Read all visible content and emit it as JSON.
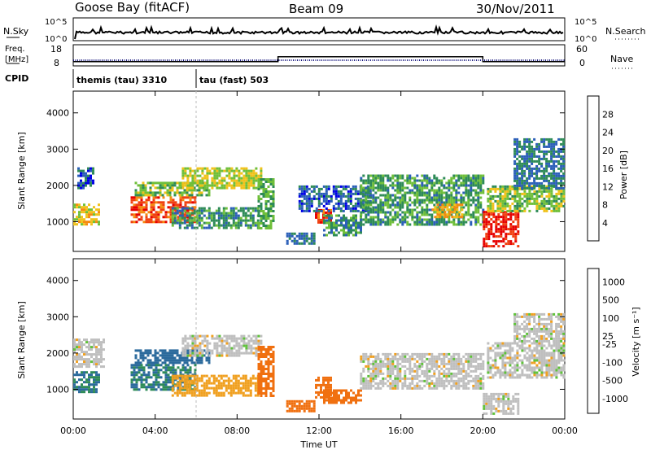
{
  "header": {
    "station": "Goose Bay (fitACF)",
    "beam": "Beam 09",
    "date": "30/Nov/2011"
  },
  "sky_panel": {
    "left_label": "N.Sky",
    "right_label": "N.Search",
    "left_ticks": [
      "10^5",
      "10^0"
    ],
    "right_ticks": [
      "10^5",
      "10^0"
    ]
  },
  "freq_panel": {
    "left_label_1": "Freq.",
    "left_label_2": "[MHz]",
    "right_label": "Nave",
    "left_ticks": [
      "18",
      "8"
    ],
    "right_ticks": [
      "60",
      "0"
    ]
  },
  "cpid": {
    "label": "CPID",
    "segments": [
      {
        "name": "themis (tau) 3310",
        "start_h": 0
      },
      {
        "name": "tau (fast) 503",
        "start_h": 6
      }
    ],
    "nave_step": [
      {
        "h": 0,
        "v": 12
      },
      {
        "h": 10,
        "v": 26
      },
      {
        "h": 20,
        "v": 12
      }
    ]
  },
  "x_axis": {
    "label": "Time UT",
    "ticks": [
      "00:00",
      "04:00",
      "08:00",
      "12:00",
      "16:00",
      "20:00",
      "00:00"
    ],
    "range_h": [
      0,
      24
    ]
  },
  "y_axis": {
    "label": "Slant Range [km]",
    "ticks": [
      "1000",
      "2000",
      "3000",
      "4000"
    ],
    "range_km": [
      180,
      4600
    ]
  },
  "power_colorbar": {
    "label": "Power [dB]",
    "ticks": [
      "4",
      "8",
      "12",
      "16",
      "20",
      "24",
      "28"
    ],
    "colors": [
      "#0000e6",
      "#2b5fb8",
      "#2e8b57",
      "#6fbf3a",
      "#f0c21a",
      "#f58a10",
      "#f04010",
      "#e60000"
    ]
  },
  "velocity_colorbar": {
    "label": "Velocity [m s⁻¹]",
    "ticks": [
      "1000",
      "500",
      "100",
      "25",
      "-25",
      "-100",
      "-500",
      "-1000"
    ],
    "colors": [
      "#1f3fb0",
      "#2b6a9c",
      "#2e8b57",
      "#5fc23a",
      "#bfbfbf",
      "#f0a020",
      "#f07010",
      "#e60000"
    ]
  },
  "chart_data": {
    "type": "heatmap",
    "title": "Goose Bay (fitACF) Beam 09 30/Nov/2011",
    "xlabel": "Time UT",
    "ylabel": "Slant Range [km]",
    "xlim_h": [
      0,
      24
    ],
    "ylim_km": [
      180,
      4600
    ],
    "power_regions": [
      {
        "t0": 0.0,
        "t1": 1.2,
        "r0": 900,
        "r1": 1500,
        "dB": 18
      },
      {
        "t0": 0.2,
        "t1": 1.0,
        "r0": 1950,
        "r1": 2500,
        "dB": 6
      },
      {
        "t0": 2.8,
        "t1": 6.0,
        "r0": 1000,
        "r1": 1700,
        "dB": 26
      },
      {
        "t0": 3.0,
        "t1": 6.6,
        "r0": 1700,
        "r1": 2100,
        "dB": 14
      },
      {
        "t0": 4.8,
        "t1": 9.0,
        "r0": 800,
        "r1": 1400,
        "dB": 10
      },
      {
        "t0": 5.3,
        "t1": 9.2,
        "r0": 1900,
        "r1": 2500,
        "dB": 16
      },
      {
        "t0": 9.0,
        "t1": 9.8,
        "r0": 800,
        "r1": 2200,
        "dB": 12
      },
      {
        "t0": 10.4,
        "t1": 11.8,
        "r0": 400,
        "r1": 700,
        "dB": 8
      },
      {
        "t0": 11.8,
        "t1": 12.6,
        "r0": 950,
        "r1": 1350,
        "dB": 26
      },
      {
        "t0": 12.2,
        "t1": 14.0,
        "r0": 600,
        "r1": 1200,
        "dB": 10
      },
      {
        "t0": 11.0,
        "t1": 14.5,
        "r0": 1300,
        "r1": 2000,
        "dB": 6
      },
      {
        "t0": 14.0,
        "t1": 20.0,
        "r0": 900,
        "r1": 2300,
        "dB": 11
      },
      {
        "t0": 17.5,
        "t1": 19.0,
        "r0": 1100,
        "r1": 1500,
        "dB": 20
      },
      {
        "t0": 20.0,
        "t1": 21.7,
        "r0": 300,
        "r1": 1300,
        "dB": 28
      },
      {
        "t0": 20.2,
        "t1": 24.0,
        "r0": 1300,
        "r1": 2000,
        "dB": 14
      },
      {
        "t0": 21.5,
        "t1": 24.0,
        "r0": 1900,
        "r1": 3300,
        "dB": 8
      }
    ],
    "velocity_regions": [
      {
        "t0": 0.0,
        "t1": 1.2,
        "r0": 900,
        "r1": 1500,
        "v": 300
      },
      {
        "t0": 0.0,
        "t1": 1.5,
        "r0": 1600,
        "r1": 2400,
        "v": 0
      },
      {
        "t0": 2.8,
        "t1": 6.0,
        "r0": 1000,
        "r1": 1700,
        "v": 300
      },
      {
        "t0": 3.0,
        "t1": 6.6,
        "r0": 1700,
        "r1": 2100,
        "v": 600
      },
      {
        "t0": 4.8,
        "t1": 9.0,
        "r0": 800,
        "r1": 1400,
        "v": -60
      },
      {
        "t0": 5.3,
        "t1": 9.2,
        "r0": 1900,
        "r1": 2500,
        "v": 0
      },
      {
        "t0": 9.0,
        "t1": 9.8,
        "r0": 800,
        "r1": 2200,
        "v": -300
      },
      {
        "t0": 10.4,
        "t1": 11.8,
        "r0": 400,
        "r1": 700,
        "v": -150
      },
      {
        "t0": 11.8,
        "t1": 12.6,
        "r0": 800,
        "r1": 1350,
        "v": -300
      },
      {
        "t0": 12.2,
        "t1": 14.0,
        "r0": 600,
        "r1": 1000,
        "v": -150
      },
      {
        "t0": 14.0,
        "t1": 20.0,
        "r0": 1000,
        "r1": 2000,
        "v": 0
      },
      {
        "t0": 20.0,
        "t1": 21.7,
        "r0": 300,
        "r1": 900,
        "v": 0
      },
      {
        "t0": 20.2,
        "t1": 24.0,
        "r0": 1300,
        "r1": 2300,
        "v": 0
      },
      {
        "t0": 21.5,
        "t1": 24.0,
        "r0": 2300,
        "r1": 3100,
        "v": 0
      }
    ]
  }
}
